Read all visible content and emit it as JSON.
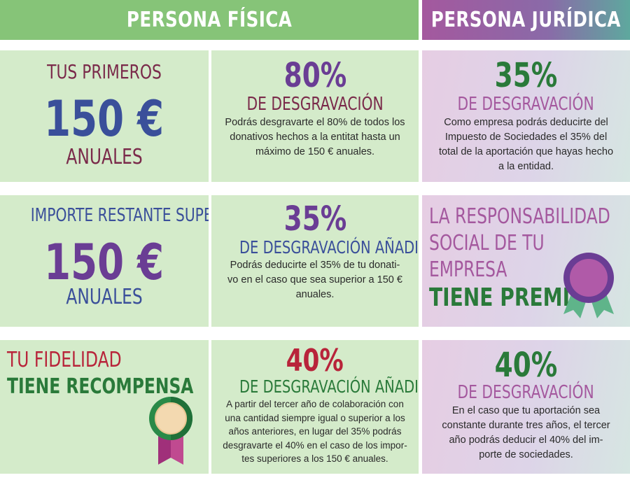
{
  "headers": {
    "fisica": "PERSONA FÍSICA",
    "juridica": "PERSONA JURÍDICA"
  },
  "colors": {
    "green_header": "#86c478",
    "green_cell": "#d4ebca",
    "purple_text": "#6a3d94",
    "blue_text": "#3a4f9a",
    "maroon_text": "#7a2a4a",
    "dark_green_text": "#2a7a3a",
    "red_text": "#b8243a"
  },
  "row1": {
    "left": {
      "top": "TUS PRIMEROS",
      "amount": "150 €",
      "bottom": "ANUALES"
    },
    "mid": {
      "percent": "80%",
      "subtitle": "DE DESGRAVACIÓN",
      "lines": [
        "Podrás desgravarte el 80% de todos los",
        "donativos hechos a la entitat hasta un",
        "máximo de 150 € anuales."
      ]
    },
    "right": {
      "percent": "35%",
      "subtitle": "DE DESGRAVACIÓN",
      "lines": [
        "Como empresa podrás deducirte del",
        "Impuesto de Sociedades el 35% del",
        "total de la aportación que hayas hecho",
        "a la entidad."
      ]
    }
  },
  "row2": {
    "left": {
      "top": "IMPORTE RESTANTE SUPERIOR",
      "amount": "150 €",
      "bottom": "ANUALES"
    },
    "mid": {
      "percent": "35%",
      "subtitle": "DE DESGRAVACIÓN AÑADIDA",
      "lines": [
        "Podrás deducirte el 35% de tu donati-",
        "vo en el caso que sea superior a 150 €",
        "anuales."
      ]
    },
    "right": {
      "lines": [
        "LA RESPONSABILIDAD",
        "SOCIAL DE TU",
        "EMPRESA"
      ],
      "highlight": "TIENE PREMIO",
      "icon": "award-ribbon-icon"
    }
  },
  "row3": {
    "left": {
      "line1": "TU FIDELIDAD",
      "line2": "TIENE RECOMPENSA",
      "icon": "medal-icon"
    },
    "mid": {
      "percent": "40%",
      "subtitle": "DE DESGRAVACIÓN AÑADIDA",
      "lines": [
        "A partir del tercer año de colaboración con",
        "una cantidad siempre igual o superior a los",
        "años anteriores, en lugar del 35% podrás",
        "desgravarte el 40% en el caso de los impor-",
        "tes superiores a los 150 € anuales."
      ]
    },
    "right": {
      "percent": "40%",
      "subtitle": "DE DESGRAVACIÓN",
      "lines": [
        "En el caso que tu aportación sea",
        "constante durante tres años, el tercer",
        "año podrás deducir el 40% del im-",
        "porte de sociedades."
      ]
    }
  }
}
